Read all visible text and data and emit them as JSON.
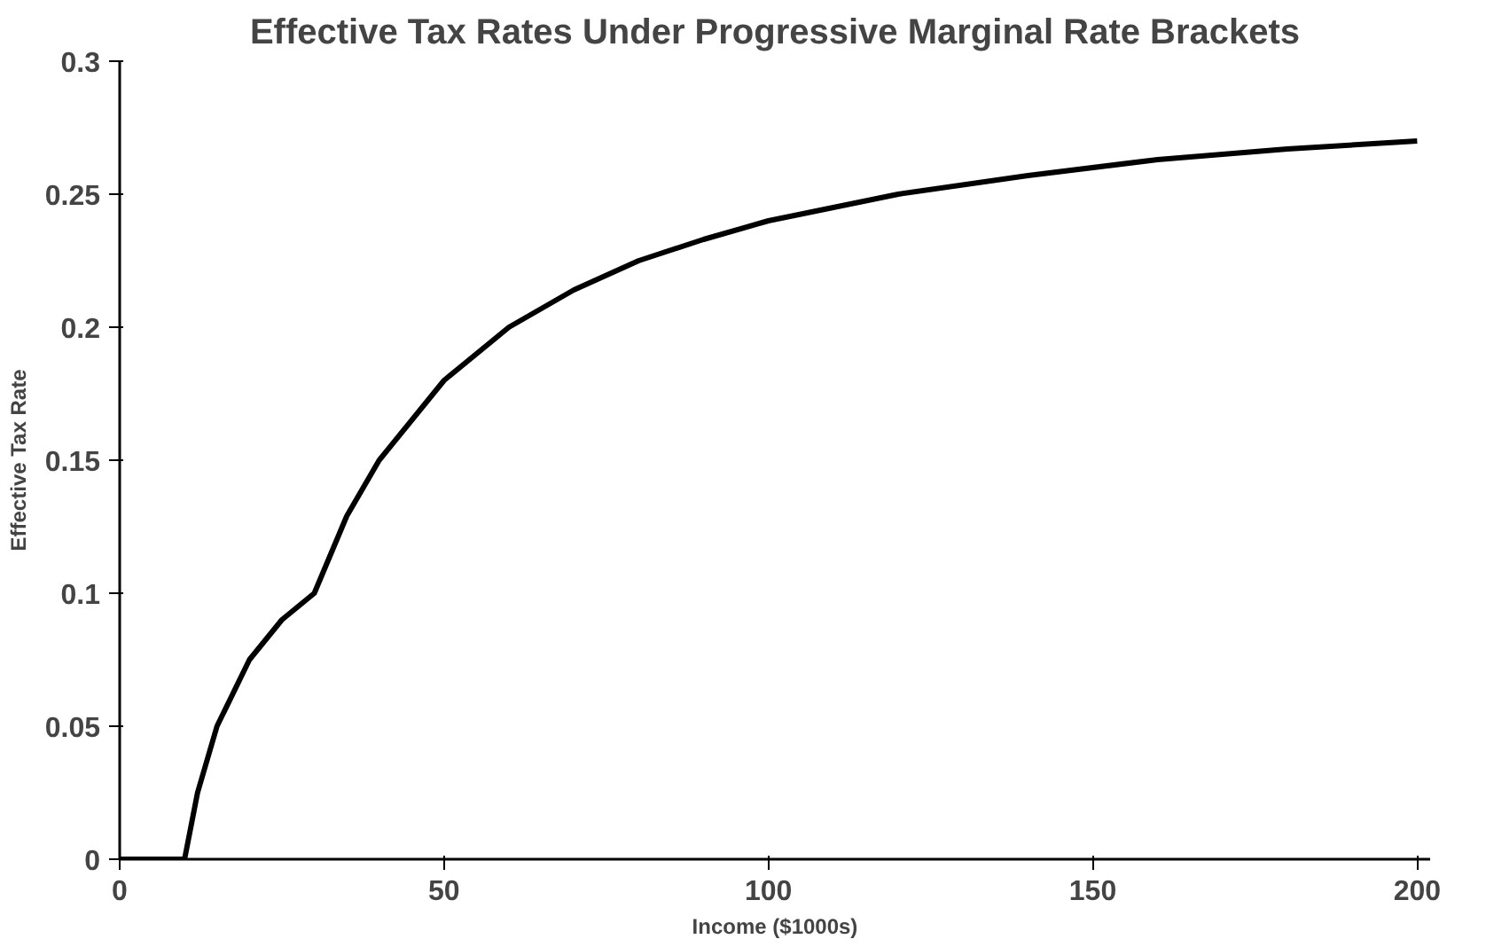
{
  "chart_data": {
    "type": "line",
    "title": "Effective Tax Rates Under Progressive Marginal Rate Brackets",
    "xlabel": "Income ($1000s)",
    "ylabel": "Effective Tax Rate",
    "x": [
      0,
      5,
      10,
      12,
      15,
      20,
      25,
      30,
      35,
      40,
      50,
      60,
      70,
      80,
      90,
      100,
      120,
      140,
      160,
      180,
      200
    ],
    "series": [
      {
        "color": "#000000",
        "values": [
          0,
          0,
          0,
          0.025,
          0.05,
          0.075,
          0.09,
          0.1,
          0.129,
          0.15,
          0.18,
          0.2,
          0.214,
          0.225,
          0.233,
          0.24,
          0.25,
          0.257,
          0.263,
          0.267,
          0.27
        ]
      }
    ],
    "xlim": [
      0,
      202
    ],
    "ylim": [
      0,
      0.3
    ],
    "xticks": [
      0,
      50,
      100,
      150,
      200
    ],
    "yticks": [
      0,
      0.05,
      0.1,
      0.15,
      0.2,
      0.25,
      0.3
    ],
    "grid": false,
    "marker": "none",
    "line_style": "solid"
  }
}
